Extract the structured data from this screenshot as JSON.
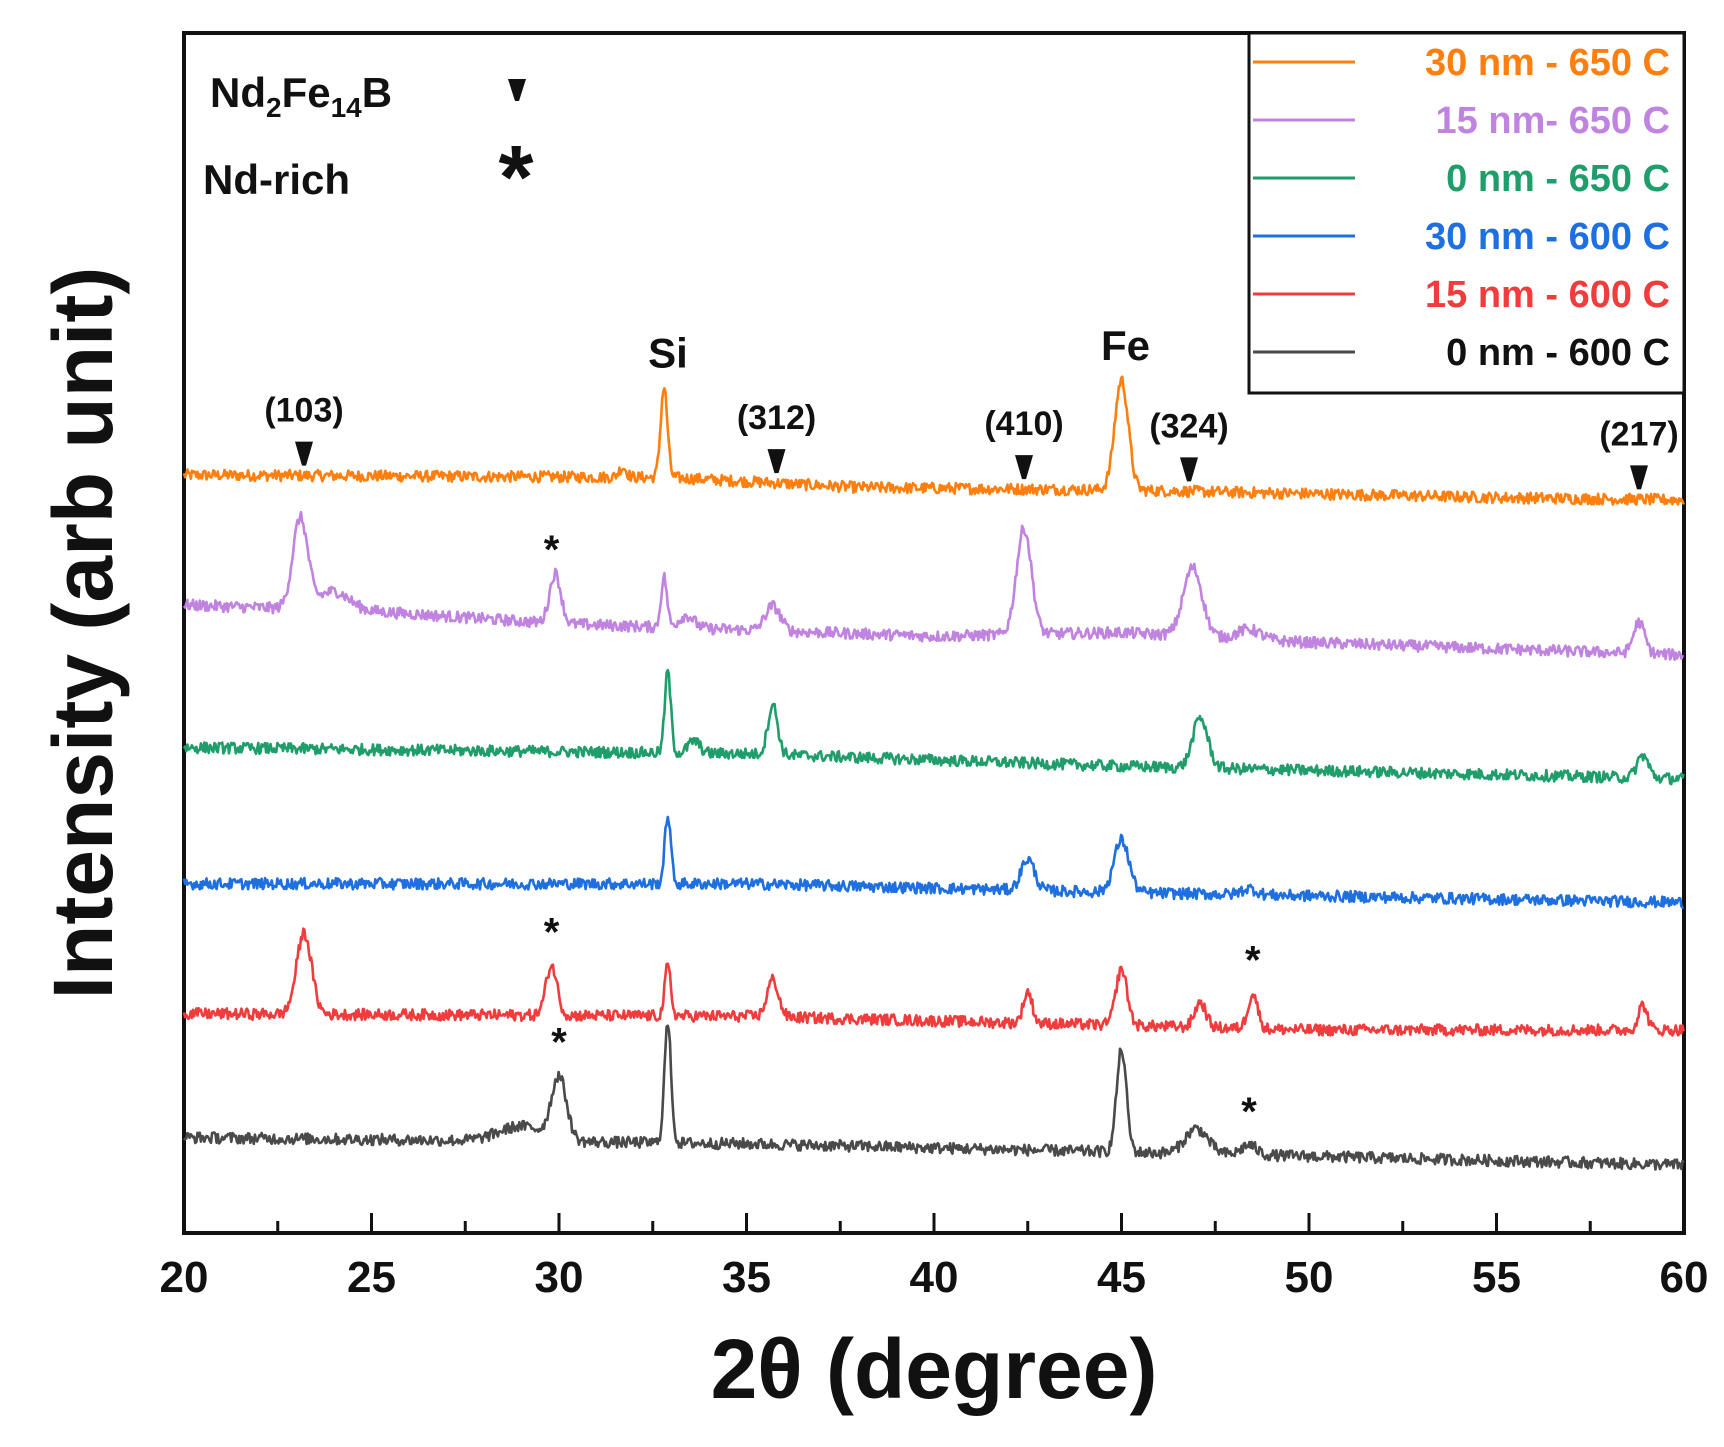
{
  "chart_data": {
    "type": "line",
    "title": "",
    "xlabel": "2θ (degree)",
    "ylabel": "Intensity (arb unit)",
    "xlim": [
      20,
      60
    ],
    "xticks": [
      20,
      25,
      30,
      35,
      40,
      45,
      50,
      55,
      60
    ],
    "x_minor_step": 2.5,
    "yticks_visible": false,
    "legend_position": "top-right",
    "series": [
      {
        "name": "30 nm - 650 C",
        "color": "#ff7f0e",
        "offset": 5,
        "baseline": [
          [
            20,
            0.2
          ],
          [
            33,
            0.18
          ],
          [
            38,
            0.1
          ],
          [
            45,
            0.08
          ],
          [
            55,
            0.02
          ],
          [
            60,
            0.0
          ]
        ],
        "peaks": [
          {
            "x": 32.8,
            "h": 0.72,
            "w": 0.09
          },
          {
            "x": 45.0,
            "h": 0.88,
            "w": 0.18
          },
          {
            "x": 31.7,
            "h": 0.08,
            "w": 0.1
          }
        ]
      },
      {
        "name": "15 nm- 650 C",
        "color": "#c083e0",
        "offset": 4,
        "baseline": [
          [
            20,
            0.2
          ],
          [
            25,
            0.15
          ],
          [
            30,
            0.05
          ],
          [
            40,
            -0.05
          ],
          [
            45,
            -0.02
          ],
          [
            50,
            -0.1
          ],
          [
            60,
            -0.2
          ]
        ],
        "peaks": [
          {
            "x": 23.1,
            "h": 0.72,
            "w": 0.2
          },
          {
            "x": 24.0,
            "h": 0.15,
            "w": 0.4
          },
          {
            "x": 29.9,
            "h": 0.4,
            "w": 0.15
          },
          {
            "x": 32.8,
            "h": 0.4,
            "w": 0.08
          },
          {
            "x": 33.4,
            "h": 0.1,
            "w": 0.2
          },
          {
            "x": 35.7,
            "h": 0.2,
            "w": 0.2
          },
          {
            "x": 42.4,
            "h": 0.85,
            "w": 0.2
          },
          {
            "x": 46.9,
            "h": 0.55,
            "w": 0.25
          },
          {
            "x": 48.4,
            "h": 0.08,
            "w": 0.3
          },
          {
            "x": 58.8,
            "h": 0.25,
            "w": 0.15
          }
        ]
      },
      {
        "name": "0 nm - 650 C",
        "color": "#1f9e6b",
        "offset": 3,
        "baseline": [
          [
            20,
            0.1
          ],
          [
            35,
            0.05
          ],
          [
            45,
            -0.05
          ],
          [
            60,
            -0.15
          ]
        ],
        "peaks": [
          {
            "x": 32.9,
            "h": 0.65,
            "w": 0.08
          },
          {
            "x": 33.6,
            "h": 0.1,
            "w": 0.15
          },
          {
            "x": 35.7,
            "h": 0.4,
            "w": 0.13
          },
          {
            "x": 47.1,
            "h": 0.4,
            "w": 0.2
          },
          {
            "x": 58.9,
            "h": 0.18,
            "w": 0.15
          }
        ]
      },
      {
        "name": "30 nm - 600 C",
        "color": "#1e6fe0",
        "offset": 2,
        "baseline": [
          [
            20,
            0.05
          ],
          [
            35,
            0.05
          ],
          [
            45,
            -0.02
          ],
          [
            60,
            -0.1
          ]
        ],
        "peaks": [
          {
            "x": 32.9,
            "h": 0.55,
            "w": 0.08
          },
          {
            "x": 42.5,
            "h": 0.25,
            "w": 0.18
          },
          {
            "x": 45.0,
            "h": 0.42,
            "w": 0.2
          },
          {
            "x": 48.4,
            "h": 0.05,
            "w": 0.2
          }
        ]
      },
      {
        "name": "15 nm - 600 C",
        "color": "#f03c3c",
        "offset": 1,
        "baseline": [
          [
            20,
            0.05
          ],
          [
            35,
            0.03
          ],
          [
            50,
            -0.08
          ],
          [
            60,
            -0.08
          ]
        ],
        "peaks": [
          {
            "x": 23.2,
            "h": 0.65,
            "w": 0.2
          },
          {
            "x": 29.8,
            "h": 0.4,
            "w": 0.15
          },
          {
            "x": 32.9,
            "h": 0.4,
            "w": 0.08
          },
          {
            "x": 35.7,
            "h": 0.3,
            "w": 0.15
          },
          {
            "x": 42.5,
            "h": 0.25,
            "w": 0.12
          },
          {
            "x": 45.0,
            "h": 0.45,
            "w": 0.15
          },
          {
            "x": 47.1,
            "h": 0.2,
            "w": 0.15
          },
          {
            "x": 48.5,
            "h": 0.28,
            "w": 0.13
          },
          {
            "x": 58.9,
            "h": 0.2,
            "w": 0.12
          }
        ]
      },
      {
        "name": "0 nm  - 600 C",
        "color": "#4a4a4a",
        "offset": 0,
        "baseline": [
          [
            20,
            0.1
          ],
          [
            35,
            0.05
          ],
          [
            50,
            -0.05
          ],
          [
            60,
            -0.12
          ]
        ],
        "peaks": [
          {
            "x": 30.0,
            "h": 0.5,
            "w": 0.2
          },
          {
            "x": 29.0,
            "h": 0.12,
            "w": 0.6
          },
          {
            "x": 32.9,
            "h": 0.95,
            "w": 0.09
          },
          {
            "x": 45.0,
            "h": 0.82,
            "w": 0.13
          },
          {
            "x": 47.0,
            "h": 0.2,
            "w": 0.3
          },
          {
            "x": 48.4,
            "h": 0.08,
            "w": 0.2
          }
        ]
      }
    ],
    "annotations": {
      "hkl": [
        {
          "label": "(103)",
          "x": 23.2
        },
        {
          "label": "(312)",
          "x": 35.8
        },
        {
          "label": "(410)",
          "x": 42.4
        },
        {
          "label": "(324)",
          "x": 46.8
        },
        {
          "label": "(217)",
          "x": 58.8
        }
      ],
      "phases": [
        {
          "label": "Si",
          "x": 32.8
        },
        {
          "label": "Fe",
          "x": 45.0
        }
      ],
      "nd_rich_stars": [
        {
          "x": 29.8,
          "series": 1
        },
        {
          "x": 29.8,
          "series": 4
        },
        {
          "x": 48.5,
          "series": 4
        },
        {
          "x": 30.0,
          "series": 5
        },
        {
          "x": 48.4,
          "series": 5
        }
      ]
    },
    "marker_key": {
      "nd2fe14b": {
        "base": "Nd",
        "sub1": "2",
        "mid": "Fe",
        "sub2": "14",
        "tail": "B"
      },
      "nd_rich": "Nd-rich",
      "star_symbol": "*"
    }
  }
}
